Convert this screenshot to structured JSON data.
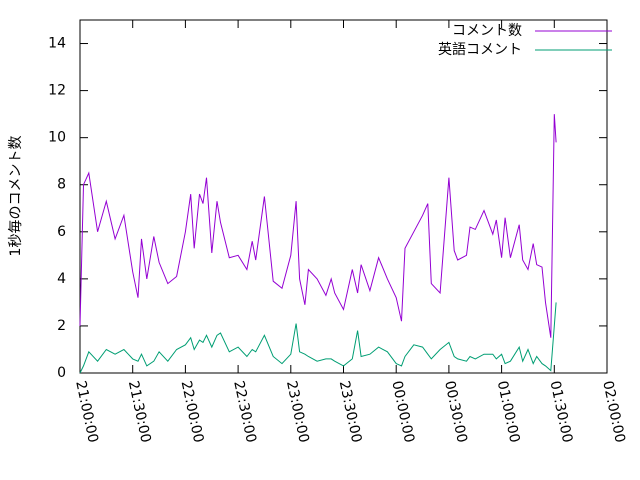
{
  "chart_data": {
    "type": "line",
    "y_label": "1秒毎のコメント数",
    "x": [
      "21:00:00",
      "21:02:00",
      "21:05:00",
      "21:10:00",
      "21:15:00",
      "21:20:00",
      "21:25:00",
      "21:30:00",
      "21:33:00",
      "21:35:00",
      "21:38:00",
      "21:42:00",
      "21:45:00",
      "21:50:00",
      "21:55:00",
      "22:00:00",
      "22:03:00",
      "22:05:00",
      "22:08:00",
      "22:10:00",
      "22:12:00",
      "22:15:00",
      "22:18:00",
      "22:20:00",
      "22:25:00",
      "22:30:00",
      "22:35:00",
      "22:38:00",
      "22:40:00",
      "22:45:00",
      "22:50:00",
      "22:55:00",
      "23:00:00",
      "23:03:00",
      "23:05:00",
      "23:08:00",
      "23:10:00",
      "23:15:00",
      "23:20:00",
      "23:23:00",
      "23:25:00",
      "23:30:00",
      "23:35:00",
      "23:38:00",
      "23:40:00",
      "23:45:00",
      "23:50:00",
      "23:55:00",
      "00:00:00",
      "00:03:00",
      "00:05:00",
      "00:10:00",
      "00:15:00",
      "00:18:00",
      "00:20:00",
      "00:25:00",
      "00:30:00",
      "00:33:00",
      "00:35:00",
      "00:40:00",
      "00:42:00",
      "00:45:00",
      "00:50:00",
      "00:55:00",
      "00:57:00",
      "01:00:00",
      "01:02:00",
      "01:05:00",
      "01:10:00",
      "01:12:00",
      "01:15:00",
      "01:18:00",
      "01:20:00",
      "01:23:00",
      "01:25:00",
      "01:28:00",
      "01:30:00",
      "01:31:00"
    ],
    "series": [
      {
        "name": "コメント数",
        "color": "#9400d3",
        "values": [
          2.0,
          8.0,
          8.5,
          6.0,
          7.3,
          5.7,
          6.7,
          4.3,
          3.2,
          5.7,
          4.0,
          5.8,
          4.7,
          3.8,
          4.1,
          6.0,
          7.6,
          5.3,
          7.6,
          7.2,
          8.3,
          5.1,
          7.3,
          6.4,
          4.9,
          5.0,
          4.4,
          5.6,
          4.8,
          7.5,
          3.9,
          3.6,
          5.0,
          7.3,
          4.0,
          2.9,
          4.4,
          4.0,
          3.3,
          4.0,
          3.4,
          2.7,
          4.4,
          3.4,
          4.6,
          3.5,
          4.9,
          4.0,
          3.2,
          2.2,
          5.3,
          6.0,
          6.7,
          7.2,
          3.8,
          3.4,
          8.3,
          5.2,
          4.8,
          5.0,
          6.2,
          6.1,
          6.9,
          5.9,
          6.5,
          4.9,
          6.6,
          4.9,
          6.3,
          4.8,
          4.4,
          5.5,
          4.6,
          4.5,
          3.0,
          1.5,
          11.0,
          9.8
        ]
      },
      {
        "name": "英語コメント",
        "color": "#009e73",
        "values": [
          0.0,
          0.3,
          0.9,
          0.5,
          1.0,
          0.8,
          1.0,
          0.6,
          0.5,
          0.8,
          0.3,
          0.5,
          0.9,
          0.5,
          1.0,
          1.2,
          1.5,
          1.0,
          1.4,
          1.3,
          1.6,
          1.1,
          1.6,
          1.7,
          0.9,
          1.1,
          0.7,
          1.0,
          0.9,
          1.6,
          0.7,
          0.4,
          0.8,
          2.1,
          0.9,
          0.8,
          0.7,
          0.5,
          0.6,
          0.6,
          0.5,
          0.3,
          0.6,
          1.8,
          0.7,
          0.8,
          1.1,
          0.9,
          0.4,
          0.3,
          0.7,
          1.2,
          1.1,
          0.8,
          0.6,
          1.0,
          1.3,
          0.7,
          0.6,
          0.5,
          0.7,
          0.6,
          0.8,
          0.8,
          0.6,
          0.8,
          0.4,
          0.5,
          1.1,
          0.5,
          1.0,
          0.4,
          0.7,
          0.4,
          0.3,
          0.1,
          2.0,
          3.0
        ]
      }
    ],
    "xlim": [
      "21:00:00",
      "02:00:00"
    ],
    "xticks": [
      "21:00:00",
      "21:30:00",
      "22:00:00",
      "22:30:00",
      "23:00:00",
      "23:30:00",
      "00:00:00",
      "00:30:00",
      "01:00:00",
      "01:30:00",
      "02:00:00"
    ],
    "ylim": [
      0,
      15
    ],
    "yticks": [
      0,
      2,
      4,
      6,
      8,
      10,
      12,
      14
    ],
    "legend": "top-right"
  }
}
